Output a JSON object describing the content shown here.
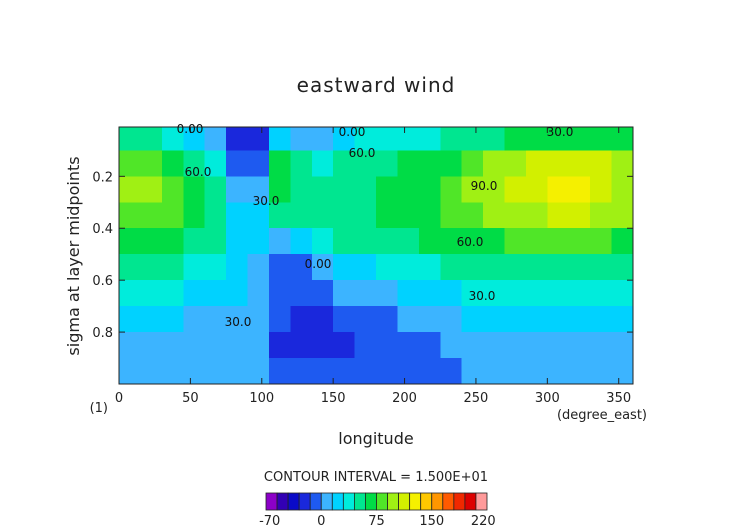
{
  "chart_data": {
    "type": "contour",
    "title": "eastward wind",
    "xlabel": "longitude",
    "ylabel": "sigma at layer midpoints",
    "xunit": "(degree_east)",
    "yunit": "(1)",
    "note": "CONTOUR INTERVAL = 1.500E+01",
    "xlim": [
      0,
      360
    ],
    "ylim": [
      0.01,
      1
    ],
    "y_inverted": true,
    "xticks": [
      0,
      50,
      100,
      150,
      200,
      250,
      300,
      350
    ],
    "yticks": [
      0.2,
      0.4,
      0.6,
      0.8
    ],
    "x": [
      7.5,
      22.5,
      37.5,
      52.5,
      67.5,
      82.5,
      97.5,
      112.5,
      127.5,
      142.5,
      157.5,
      172.5,
      187.5,
      202.5,
      217.5,
      232.5,
      247.5,
      262.5,
      277.5,
      292.5,
      307.5,
      322.5,
      337.5,
      352.5
    ],
    "y": [
      0.05,
      0.15,
      0.25,
      0.35,
      0.45,
      0.55,
      0.65,
      0.75,
      0.85,
      0.95
    ],
    "z": [
      [
        50,
        45,
        30,
        15,
        10,
        -20,
        -20,
        20,
        5,
        5,
        20,
        30,
        35,
        40,
        40,
        45,
        50,
        55,
        60,
        65,
        70,
        70,
        65,
        60
      ],
      [
        85,
        80,
        70,
        55,
        40,
        -15,
        -10,
        60,
        50,
        40,
        45,
        50,
        55,
        60,
        65,
        70,
        80,
        90,
        100,
        105,
        110,
        110,
        105,
        95
      ],
      [
        95,
        90,
        80,
        65,
        45,
        0,
        10,
        65,
        55,
        50,
        50,
        55,
        60,
        65,
        70,
        80,
        90,
        100,
        110,
        115,
        120,
        125,
        115,
        100
      ],
      [
        85,
        85,
        75,
        65,
        50,
        15,
        20,
        45,
        45,
        50,
        50,
        55,
        60,
        65,
        70,
        75,
        80,
        90,
        95,
        100,
        105,
        105,
        100,
        90
      ],
      [
        70,
        70,
        65,
        55,
        45,
        25,
        15,
        10,
        20,
        35,
        45,
        50,
        55,
        55,
        60,
        65,
        65,
        70,
        75,
        75,
        75,
        75,
        75,
        70
      ],
      [
        50,
        50,
        45,
        40,
        35,
        20,
        10,
        -5,
        -5,
        5,
        15,
        20,
        30,
        35,
        40,
        45,
        50,
        55,
        55,
        55,
        55,
        55,
        55,
        50
      ],
      [
        30,
        30,
        30,
        25,
        25,
        15,
        10,
        -10,
        -10,
        -5,
        0,
        5,
        10,
        15,
        20,
        25,
        30,
        35,
        40,
        40,
        40,
        40,
        40,
        35
      ],
      [
        20,
        20,
        15,
        10,
        10,
        10,
        5,
        -15,
        -20,
        -20,
        -15,
        -10,
        -5,
        0,
        5,
        10,
        15,
        20,
        25,
        25,
        25,
        25,
        25,
        20
      ],
      [
        10,
        10,
        10,
        5,
        5,
        5,
        5,
        -20,
        -20,
        -20,
        -20,
        -15,
        -10,
        -5,
        -5,
        0,
        5,
        10,
        10,
        10,
        10,
        10,
        10,
        10
      ],
      [
        5,
        5,
        5,
        5,
        5,
        5,
        5,
        -5,
        -10,
        -10,
        -10,
        -10,
        -5,
        -5,
        -5,
        -5,
        5,
        5,
        5,
        5,
        5,
        5,
        5,
        5
      ]
    ],
    "contour_labels": [
      "0.00",
      "0.00",
      "0.00",
      "30.0",
      "30.0",
      "30.0",
      "30.0",
      "60.0",
      "60.0",
      "60.0",
      "90.0"
    ],
    "colorbar": {
      "levels": [
        -75,
        -60,
        -45,
        -30,
        -15,
        0,
        15,
        30,
        45,
        60,
        75,
        90,
        105,
        120,
        135,
        150,
        165,
        180,
        195,
        210,
        225
      ],
      "colors": [
        "#8c00c8",
        "#3200b4",
        "#0a0ac8",
        "#1a28dc",
        "#1e5af0",
        "#3cb4ff",
        "#00d2ff",
        "#00ecdc",
        "#00e690",
        "#00dc46",
        "#50e628",
        "#a0f014",
        "#d2f000",
        "#f5f000",
        "#ffc800",
        "#ff9600",
        "#ff5a00",
        "#f02800",
        "#dc0000",
        "#ff9a9a"
      ],
      "ticks": [
        -70,
        0,
        75,
        150,
        220
      ]
    }
  }
}
